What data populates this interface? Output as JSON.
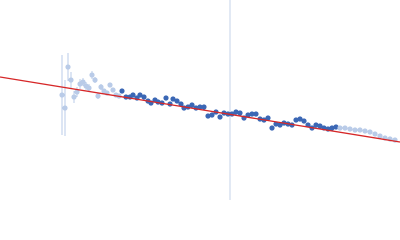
{
  "chart_data": {
    "type": "scatter",
    "xlim": [
      0,
      400
    ],
    "ylim": [
      200,
      0
    ],
    "series": [
      {
        "color": "#b9cbe8",
        "x": [
          62,
          65,
          68,
          71,
          74,
          77,
          80,
          83,
          86,
          89,
          92,
          95,
          98,
          101,
          104,
          107,
          110,
          113,
          116,
          119
        ],
        "values": [
          95,
          108,
          67,
          80,
          97,
          92,
          84,
          82,
          86,
          88,
          75,
          80,
          96,
          87,
          91,
          93,
          85,
          90,
          95,
          96
        ],
        "errors": [
          40,
          28,
          14,
          8,
          6,
          5,
          5,
          4,
          4,
          4,
          4,
          3,
          3,
          3,
          null,
          null,
          null,
          null,
          null,
          null
        ]
      },
      {
        "color": "#3b67b5",
        "x": [
          122,
          126,
          130,
          133,
          137,
          140,
          144,
          148,
          151,
          155,
          158,
          162,
          166,
          170,
          173,
          177,
          181,
          184,
          188,
          192,
          196,
          200,
          204,
          208,
          212,
          216,
          220,
          224,
          228,
          232,
          236,
          240,
          244,
          248,
          252,
          256,
          260,
          264,
          268,
          272,
          276,
          280,
          284,
          288,
          292,
          296,
          300,
          304,
          308,
          312,
          316,
          320,
          324,
          328,
          332,
          336
        ],
        "values": [
          91,
          97,
          97,
          95,
          98,
          95,
          97,
          101,
          103,
          100,
          102,
          103,
          98,
          104,
          99,
          101,
          104,
          108,
          107,
          105,
          108,
          107,
          107,
          116,
          115,
          112,
          117,
          113,
          114,
          114,
          112,
          113,
          118,
          115,
          114,
          114,
          119,
          120,
          118,
          128,
          124,
          125,
          123,
          124,
          125,
          120,
          119,
          121,
          125,
          128,
          125,
          126,
          128,
          129,
          128,
          127
        ]
      },
      {
        "color": "#b9cbe8",
        "x": [
          340,
          345,
          350,
          355,
          360,
          365,
          370,
          375,
          380,
          385,
          390,
          395
        ],
        "values": [
          128,
          128,
          129,
          130,
          130,
          131,
          132,
          134,
          136,
          138,
          139,
          140
        ]
      }
    ],
    "fit": {
      "color": "#d62728",
      "x": [
        0,
        400
      ],
      "values": [
        77,
        142
      ]
    },
    "vline": {
      "color": "#c5d3e8",
      "x": 230
    }
  }
}
